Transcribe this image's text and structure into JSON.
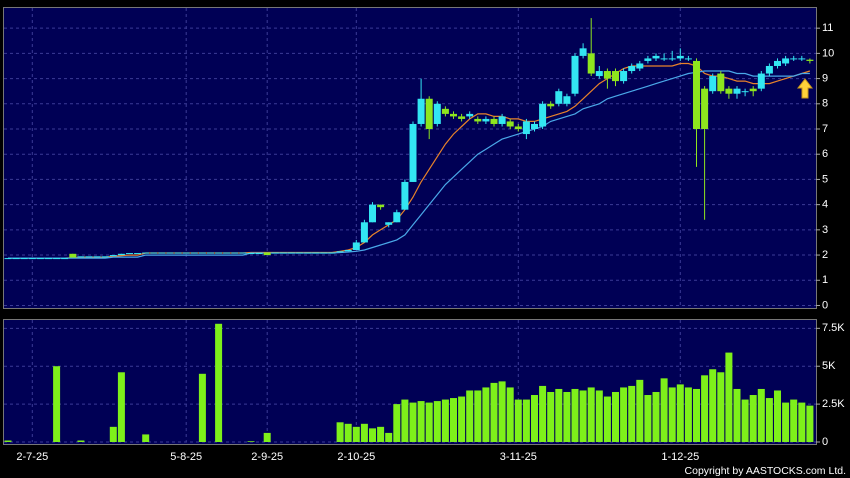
{
  "chart_data": {
    "type": "candlestick",
    "categories": [
      null,
      null,
      null,
      "2-7-25",
      null,
      null,
      null,
      null,
      null,
      null,
      null,
      null,
      null,
      null,
      null,
      null,
      null,
      null,
      null,
      null,
      null,
      null,
      "5-8-25",
      null,
      null,
      null,
      null,
      null,
      null,
      null,
      null,
      null,
      "2-9-25",
      null,
      null,
      null,
      null,
      null,
      null,
      null,
      null,
      null,
      null,
      "2-10-25",
      null,
      null,
      null,
      null,
      null,
      null,
      null,
      null,
      null,
      null,
      null,
      null,
      null,
      null,
      null,
      null,
      null,
      null,
      null,
      "3-11-25",
      null,
      null,
      null,
      null,
      null,
      null,
      null,
      null,
      null,
      null,
      null,
      null,
      null,
      null,
      null,
      null,
      null,
      null,
      null,
      "1-12-25",
      null,
      null,
      null,
      null,
      null,
      null,
      null,
      null,
      null,
      null,
      null,
      null,
      null,
      null,
      null,
      null
    ],
    "open": [
      1.88,
      1.88,
      1.88,
      1.88,
      1.88,
      1.88,
      1.88,
      1.88,
      2.05,
      1.95,
      1.95,
      1.95,
      1.95,
      2.0,
      2.0,
      2.08,
      2.08,
      2.1,
      2.1,
      2.1,
      2.1,
      2.1,
      2.1,
      2.1,
      2.1,
      2.1,
      2.1,
      2.1,
      2.1,
      2.1,
      2.08,
      2.08,
      2.1,
      2.1,
      2.1,
      2.1,
      2.1,
      2.1,
      2.1,
      2.1,
      2.1,
      2.15,
      2.15,
      2.2,
      2.5,
      3.3,
      4.0,
      3.2,
      3.3,
      3.8,
      4.9,
      7.2,
      8.2,
      7.2,
      7.8,
      7.6,
      7.5,
      7.5,
      7.4,
      7.3,
      7.4,
      7.2,
      7.3,
      7.1,
      6.8,
      7.0,
      7.1,
      8.0,
      8.0,
      8.0,
      8.4,
      9.9,
      10.0,
      9.1,
      9.3,
      9.3,
      8.9,
      9.3,
      9.4,
      9.7,
      9.8,
      9.8,
      9.8,
      9.8,
      9.8,
      9.7,
      8.6,
      8.5,
      9.2,
      8.6,
      8.4,
      8.5,
      8.6,
      8.6,
      9.2,
      9.5,
      9.6,
      9.8,
      9.8,
      9.75
    ],
    "high": [
      1.88,
      1.88,
      1.88,
      1.88,
      1.88,
      1.88,
      1.88,
      1.88,
      2.05,
      1.95,
      1.95,
      1.95,
      1.95,
      2.0,
      2.05,
      2.08,
      2.08,
      2.1,
      2.1,
      2.1,
      2.1,
      2.1,
      2.1,
      2.1,
      2.1,
      2.1,
      2.1,
      2.1,
      2.1,
      2.1,
      2.08,
      2.08,
      2.1,
      2.1,
      2.1,
      2.1,
      2.1,
      2.1,
      2.1,
      2.1,
      2.1,
      2.15,
      2.2,
      2.6,
      3.4,
      4.1,
      4.0,
      3.3,
      3.8,
      5.0,
      7.3,
      9.0,
      8.3,
      8.1,
      7.9,
      7.7,
      7.6,
      7.7,
      7.5,
      7.5,
      7.5,
      7.6,
      7.4,
      7.2,
      7.4,
      7.3,
      8.1,
      8.1,
      8.6,
      8.4,
      10.0,
      10.4,
      11.4,
      9.5,
      9.4,
      9.4,
      9.4,
      9.6,
      9.7,
      9.9,
      10.0,
      10.0,
      10.1,
      10.2,
      9.9,
      9.8,
      8.7,
      9.2,
      9.3,
      8.7,
      8.7,
      8.6,
      8.7,
      9.3,
      9.6,
      9.8,
      9.9,
      9.9,
      9.9,
      9.8
    ],
    "low": [
      1.88,
      1.88,
      1.88,
      1.88,
      1.88,
      1.88,
      1.88,
      1.88,
      1.9,
      1.95,
      1.95,
      1.95,
      1.95,
      2.0,
      2.0,
      2.08,
      2.08,
      2.1,
      2.1,
      2.1,
      2.1,
      2.1,
      2.1,
      2.1,
      2.1,
      2.1,
      2.1,
      2.1,
      2.1,
      2.1,
      2.08,
      2.08,
      2.0,
      2.1,
      2.1,
      2.1,
      2.1,
      2.1,
      2.1,
      2.1,
      2.1,
      2.15,
      2.15,
      2.2,
      2.5,
      3.3,
      3.8,
      3.1,
      3.3,
      3.8,
      4.9,
      7.1,
      6.6,
      7.1,
      7.5,
      7.4,
      7.3,
      7.4,
      7.2,
      7.2,
      7.1,
      7.1,
      7.0,
      6.9,
      6.6,
      6.9,
      7.0,
      7.8,
      7.9,
      7.9,
      8.3,
      9.8,
      9.1,
      9.0,
      8.6,
      8.7,
      8.8,
      9.2,
      9.3,
      9.6,
      9.7,
      9.7,
      9.7,
      9.7,
      9.7,
      5.5,
      3.4,
      8.4,
      8.4,
      8.2,
      8.2,
      8.3,
      8.3,
      8.5,
      9.1,
      9.4,
      9.5,
      9.7,
      9.7,
      9.6
    ],
    "close": [
      1.88,
      1.88,
      1.88,
      1.88,
      1.88,
      1.88,
      1.88,
      1.88,
      1.9,
      1.95,
      1.95,
      1.95,
      1.95,
      2.0,
      2.05,
      2.08,
      2.08,
      2.1,
      2.1,
      2.1,
      2.1,
      2.1,
      2.1,
      2.1,
      2.1,
      2.1,
      2.1,
      2.1,
      2.1,
      2.1,
      2.08,
      2.08,
      2.0,
      2.1,
      2.1,
      2.1,
      2.1,
      2.1,
      2.1,
      2.1,
      2.1,
      2.15,
      2.2,
      2.5,
      3.3,
      4.0,
      3.9,
      3.3,
      3.7,
      4.9,
      7.2,
      8.2,
      7.0,
      8.0,
      7.6,
      7.5,
      7.4,
      7.6,
      7.3,
      7.4,
      7.2,
      7.5,
      7.1,
      7.0,
      7.3,
      7.2,
      8.0,
      7.9,
      8.5,
      8.3,
      9.9,
      10.2,
      9.2,
      9.3,
      9.0,
      8.9,
      9.3,
      9.5,
      9.6,
      9.8,
      9.9,
      9.8,
      9.8,
      9.9,
      9.8,
      7.0,
      7.0,
      9.1,
      8.5,
      8.4,
      8.6,
      8.5,
      8.5,
      9.2,
      9.5,
      9.7,
      9.8,
      9.8,
      9.8,
      9.7
    ],
    "up_color": "#33e6f2",
    "down_color": "#8ee61e",
    "ylim": [
      -0.1,
      11.8
    ],
    "yticks": [
      0,
      1,
      2,
      3,
      4,
      5,
      6,
      7,
      8,
      9,
      10,
      11
    ],
    "grid": true,
    "series": [
      {
        "color": "#e8822a",
        "values": [
          1.88,
          1.88,
          1.88,
          1.88,
          1.88,
          1.88,
          1.88,
          1.88,
          1.9,
          1.92,
          1.92,
          1.92,
          1.92,
          1.95,
          1.98,
          2.0,
          2.0,
          2.08,
          2.08,
          2.08,
          2.08,
          2.08,
          2.08,
          2.08,
          2.08,
          2.08,
          2.08,
          2.08,
          2.08,
          2.08,
          2.1,
          2.1,
          2.1,
          2.1,
          2.1,
          2.1,
          2.1,
          2.1,
          2.1,
          2.1,
          2.1,
          2.15,
          2.2,
          2.3,
          2.5,
          2.8,
          3.0,
          3.2,
          3.4,
          3.8,
          4.3,
          4.9,
          5.4,
          5.9,
          6.4,
          6.8,
          7.1,
          7.4,
          7.6,
          7.6,
          7.5,
          7.5,
          7.4,
          7.4,
          7.3,
          7.3,
          7.4,
          7.5,
          7.6,
          7.7,
          7.9,
          8.2,
          8.5,
          8.8,
          9.0,
          9.2,
          9.4,
          9.5,
          9.5,
          9.5,
          9.5,
          9.5,
          9.5,
          9.6,
          9.6,
          9.5,
          9.2,
          9.1,
          9.1,
          9.0,
          8.9,
          8.9,
          8.8,
          8.8,
          8.8,
          8.9,
          9.0,
          9.1,
          9.2,
          9.3
        ]
      },
      {
        "color": "#4aa8e8",
        "values": [
          1.88,
          1.88,
          1.88,
          1.88,
          1.88,
          1.88,
          1.88,
          1.88,
          1.88,
          1.88,
          1.88,
          1.88,
          1.88,
          1.92,
          1.92,
          1.92,
          1.92,
          2.0,
          2.0,
          2.0,
          2.0,
          2.0,
          2.0,
          2.0,
          2.0,
          2.0,
          2.0,
          2.0,
          2.0,
          2.0,
          2.08,
          2.08,
          2.08,
          2.08,
          2.08,
          2.08,
          2.08,
          2.08,
          2.08,
          2.08,
          2.08,
          2.1,
          2.12,
          2.15,
          2.2,
          2.3,
          2.4,
          2.5,
          2.6,
          2.8,
          3.2,
          3.6,
          4.0,
          4.4,
          4.8,
          5.1,
          5.4,
          5.7,
          6.0,
          6.2,
          6.4,
          6.6,
          6.7,
          6.8,
          6.9,
          7.0,
          7.1,
          7.3,
          7.4,
          7.5,
          7.6,
          7.8,
          7.9,
          8.0,
          8.2,
          8.3,
          8.4,
          8.5,
          8.6,
          8.7,
          8.8,
          8.9,
          9.0,
          9.1,
          9.2,
          9.25,
          9.3,
          9.3,
          9.3,
          9.3,
          9.2,
          9.2,
          9.1,
          9.1,
          9.1,
          9.1,
          9.1,
          9.1,
          9.2,
          9.2
        ]
      }
    ],
    "volume": {
      "type": "bar",
      "color": "#7ef01a",
      "ylim": [
        0,
        8050
      ],
      "yticks": [
        0,
        {
          "value": 2500,
          "label": "2.5K"
        },
        {
          "value": 5000,
          "label": "5K"
        },
        {
          "value": 7500,
          "label": "7.5K"
        }
      ],
      "values": [
        100,
        0,
        0,
        0,
        0,
        0,
        5000,
        0,
        0,
        100,
        0,
        0,
        0,
        1000,
        4600,
        0,
        0,
        500,
        0,
        0,
        0,
        0,
        0,
        0,
        4500,
        0,
        7800,
        0,
        0,
        0,
        50,
        0,
        600,
        0,
        0,
        0,
        0,
        0,
        0,
        0,
        0,
        1300,
        1200,
        1000,
        1200,
        900,
        1000,
        600,
        2500,
        2800,
        2600,
        2700,
        2600,
        2700,
        2800,
        2900,
        3000,
        3400,
        3400,
        3600,
        3900,
        4000,
        3600,
        2800,
        2800,
        3100,
        3700,
        3300,
        3500,
        3300,
        3500,
        3400,
        3600,
        3400,
        3000,
        3300,
        3600,
        3700,
        4100,
        3100,
        3300,
        4200,
        3600,
        3800,
        3600,
        3500,
        4400,
        4800,
        4600,
        5900,
        3500,
        2800,
        3100,
        3500,
        2900,
        3400,
        2600,
        2800,
        2600,
        2400
      ]
    }
  },
  "footer": "Copyright by AASTOCKS.com Ltd."
}
